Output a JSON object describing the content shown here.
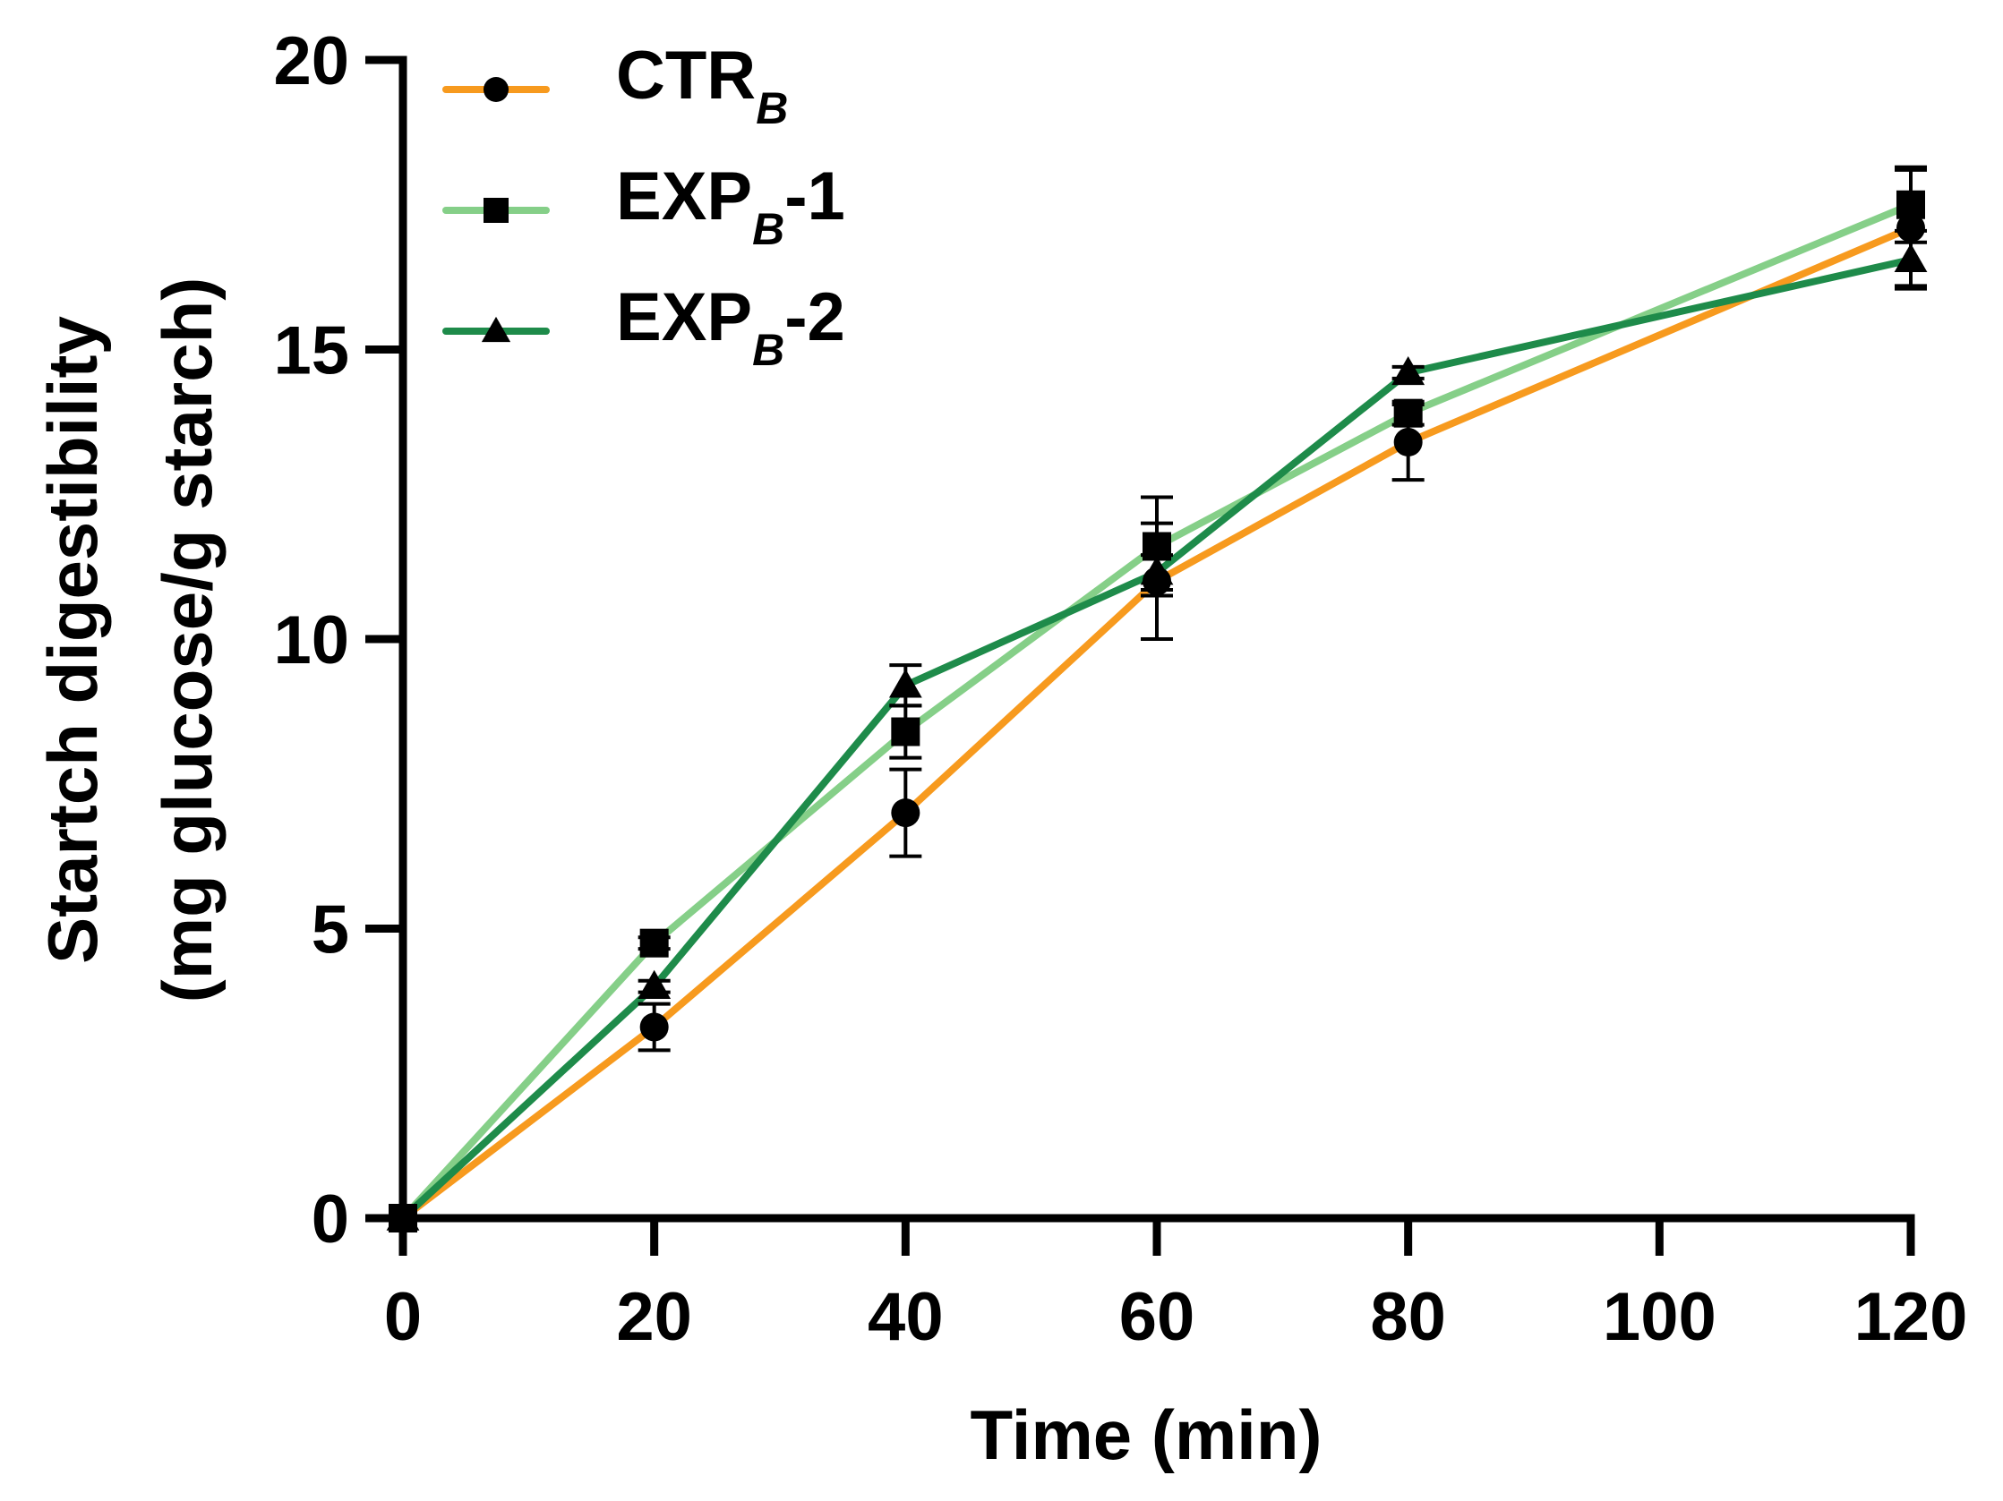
{
  "chart_data": {
    "type": "line",
    "title": "",
    "xlabel": "Time (min)",
    "ylabel_line1": "Startch digestibility",
    "ylabel_line2": "(mg glucose/g starch)",
    "xlim": [
      0,
      120
    ],
    "ylim": [
      0,
      20
    ],
    "xticks": [
      0,
      20,
      40,
      60,
      80,
      100,
      120
    ],
    "yticks": [
      0,
      5,
      10,
      15,
      20
    ],
    "grid": false,
    "legend_position": "top-left",
    "x": [
      0,
      20,
      40,
      60,
      80,
      120
    ],
    "series": [
      {
        "name": "CTRB",
        "label_main": "CTR",
        "label_sub": "B",
        "label_suffix": "",
        "color": "#f79a1e",
        "marker": "circle",
        "values": [
          0,
          3.3,
          7.0,
          11.0,
          13.4,
          17.1
        ],
        "errors": [
          0,
          0.4,
          0.75,
          1.0,
          0.65,
          1.0
        ]
      },
      {
        "name": "EXPB-1",
        "label_main": "EXP",
        "label_sub": "B",
        "label_suffix": "-1",
        "color": "#85cf88",
        "marker": "square",
        "values": [
          0,
          4.75,
          8.4,
          11.6,
          13.9,
          17.5
        ],
        "errors": [
          0,
          0.1,
          0.45,
          0.85,
          0.2,
          0.65
        ]
      },
      {
        "name": "EXPB-2",
        "label_main": "EXP",
        "label_sub": "B",
        "label_suffix": "-2",
        "color": "#1e8b4a",
        "marker": "triangle",
        "values": [
          0,
          4.0,
          9.2,
          11.15,
          14.6,
          16.55
        ],
        "errors": [
          0,
          0.1,
          0.35,
          0.3,
          0.1,
          0.5
        ]
      }
    ]
  }
}
